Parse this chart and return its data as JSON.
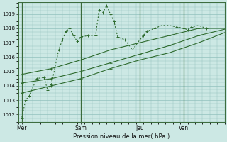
{
  "bg_color": "#cce8e4",
  "grid_color": "#90c0bc",
  "line_color": "#2d6a2d",
  "title": "Pression niveau de la mer( hPa )",
  "ylim": [
    1011.5,
    1019.8
  ],
  "yticks": [
    1012,
    1013,
    1014,
    1015,
    1016,
    1017,
    1018,
    1019
  ],
  "xlabel_days": [
    "Mer",
    "Sam",
    "Jeu",
    "Ven"
  ],
  "xtick_positions": [
    0,
    8,
    16,
    22
  ],
  "vline_positions": [
    0,
    8,
    16,
    22
  ],
  "series_jagged": {
    "x": [
      0,
      0.5,
      1,
      2,
      3,
      3.5,
      4,
      5,
      5.5,
      6,
      6.5,
      7,
      7.5,
      8,
      9,
      10,
      10.5,
      11,
      11.5,
      12,
      12.5,
      13,
      14,
      15,
      16,
      16.5,
      17,
      18,
      19,
      20,
      21,
      22,
      22.5,
      23,
      24,
      25
    ],
    "y": [
      1011.8,
      1013.0,
      1013.3,
      1014.5,
      1014.6,
      1013.7,
      1014.1,
      1016.5,
      1017.2,
      1017.8,
      1018.0,
      1017.5,
      1017.1,
      1017.4,
      1017.5,
      1017.5,
      1019.3,
      1019.1,
      1019.6,
      1019.0,
      1018.5,
      1017.4,
      1017.2,
      1016.5,
      1017.2,
      1017.5,
      1017.8,
      1018.0,
      1018.2,
      1018.2,
      1018.1,
      1018.0,
      1017.9,
      1018.1,
      1018.2,
      1018.0
    ]
  },
  "series_linear": [
    {
      "x": [
        0,
        4,
        8,
        12,
        16,
        20,
        24,
        28
      ],
      "y": [
        1014.8,
        1015.2,
        1015.8,
        1016.5,
        1017.0,
        1017.5,
        1018.0,
        1018.0
      ]
    },
    {
      "x": [
        0,
        4,
        8,
        12,
        16,
        20,
        24,
        28
      ],
      "y": [
        1014.2,
        1014.5,
        1015.0,
        1015.6,
        1016.2,
        1016.8,
        1017.5,
        1018.0
      ]
    },
    {
      "x": [
        0,
        4,
        8,
        12,
        16,
        20,
        24,
        28
      ],
      "y": [
        1013.5,
        1014.0,
        1014.5,
        1015.2,
        1015.8,
        1016.3,
        1017.0,
        1017.8
      ]
    }
  ],
  "n_points": 28,
  "marker": "+"
}
